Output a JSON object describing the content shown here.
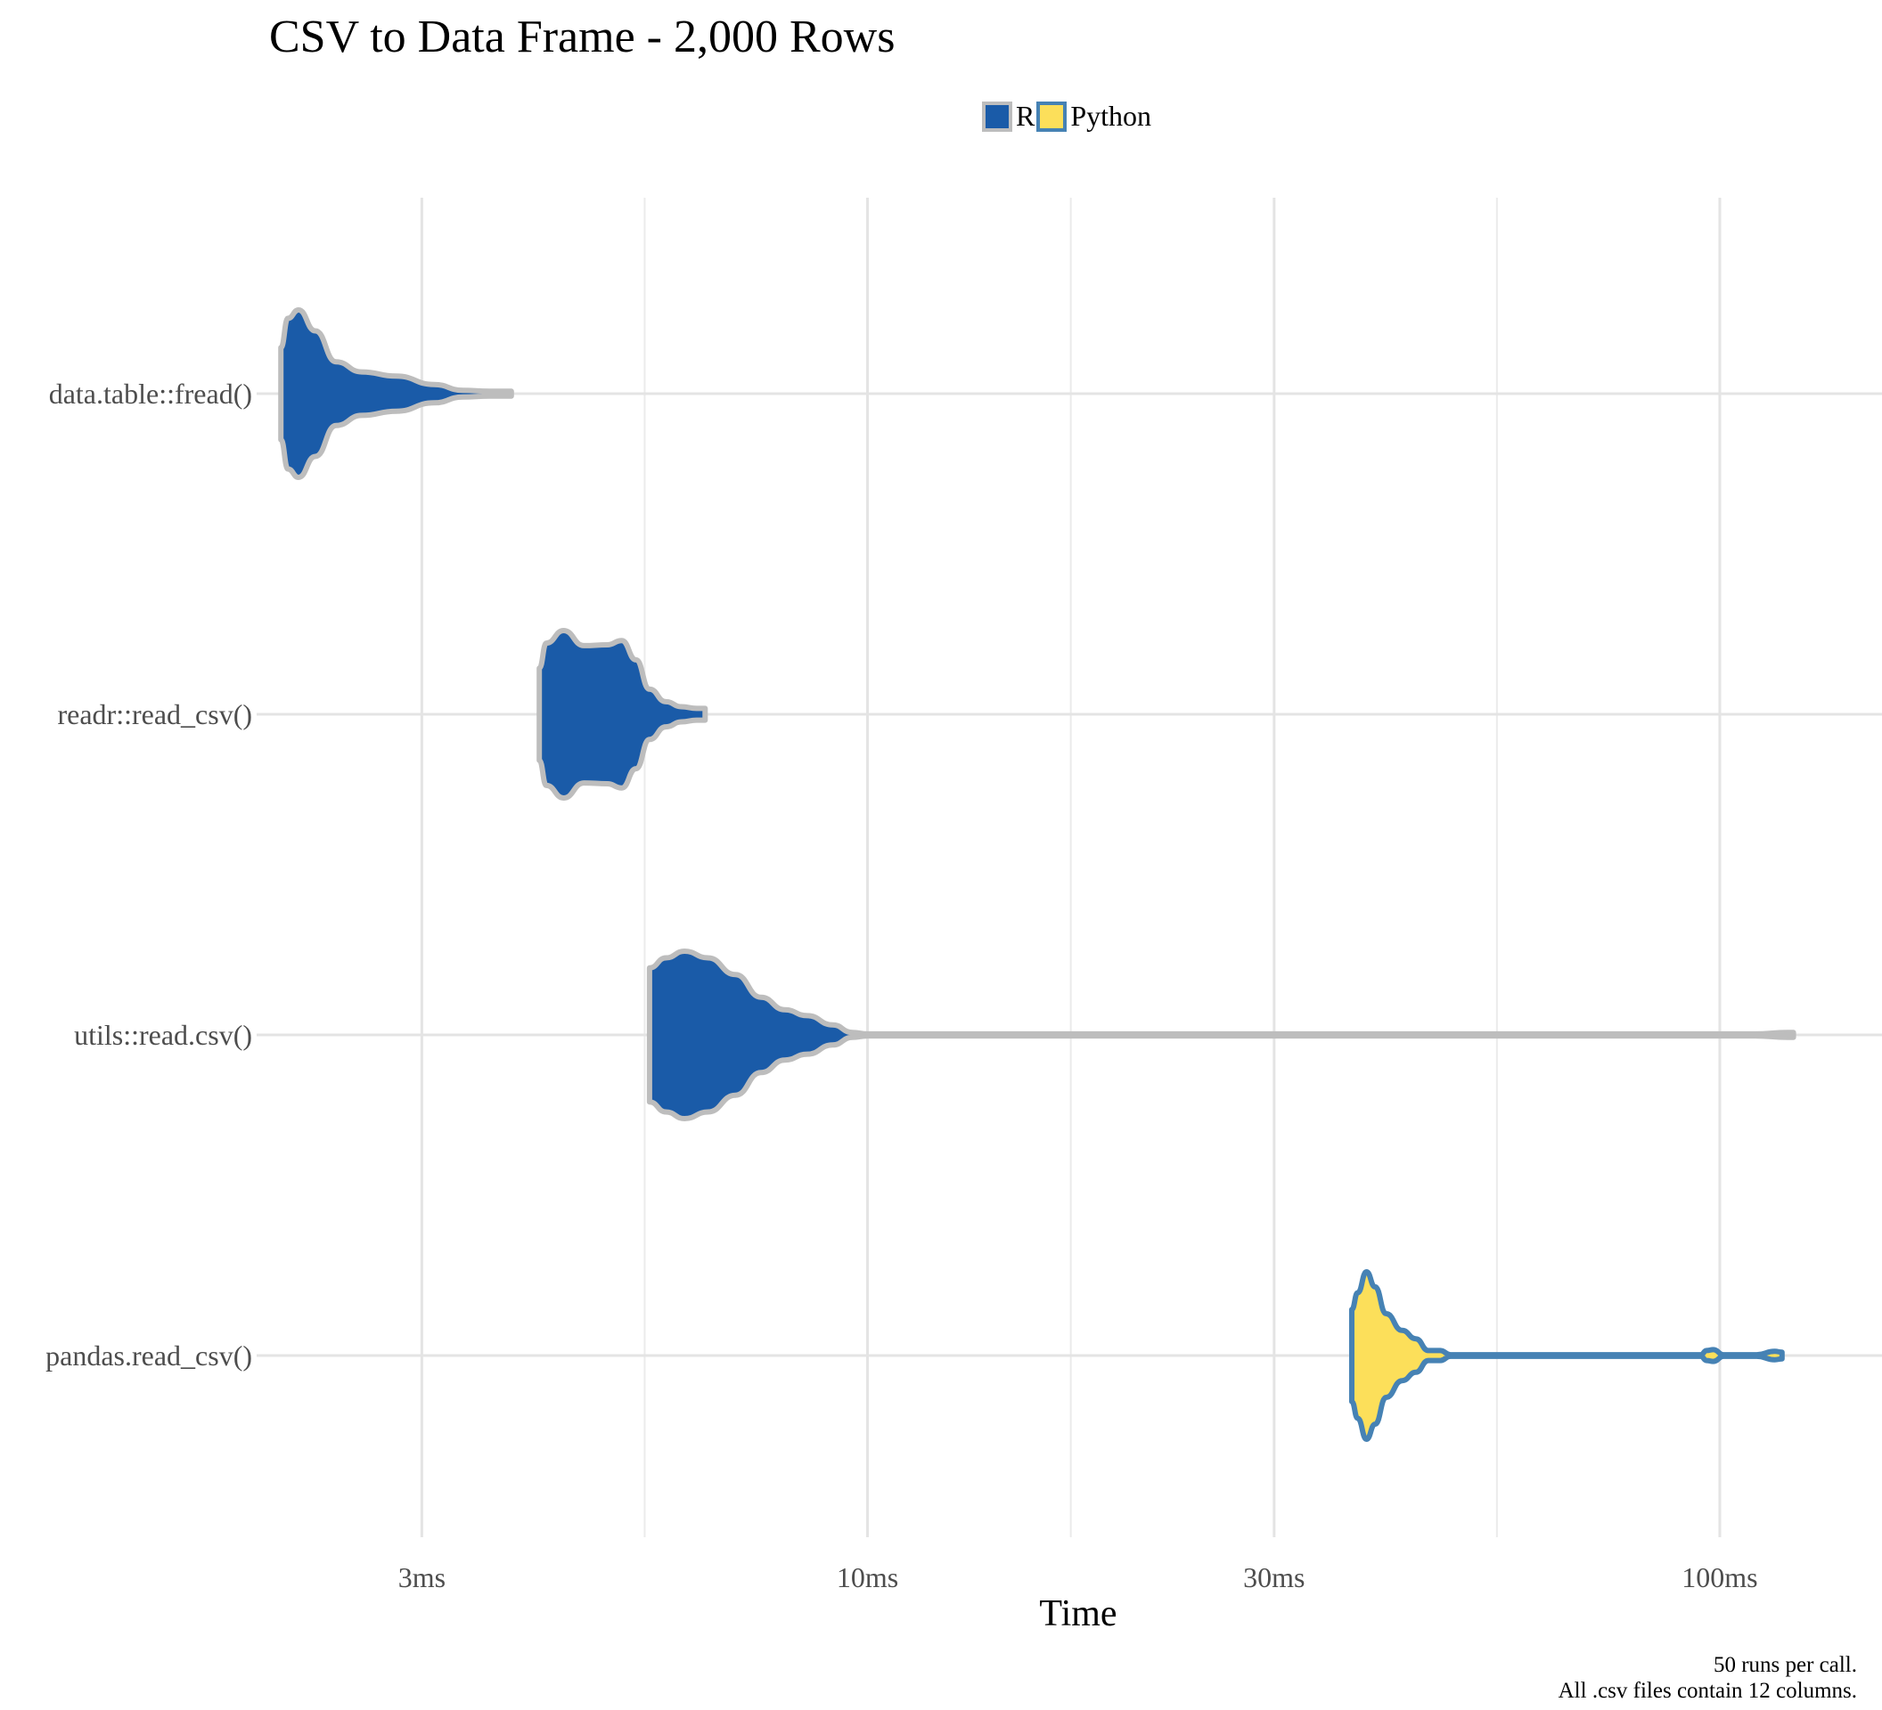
{
  "chart_data": {
    "type": "violin",
    "title": "CSV to Data Frame - 2,000 Rows",
    "xlabel": "Time",
    "ylabel": "",
    "x_scale": "log10",
    "x_unit": "ms",
    "xlim": [
      1.92,
      155
    ],
    "x_ticks": [
      {
        "value": 3,
        "label": "3ms"
      },
      {
        "value": 10,
        "label": "10ms"
      },
      {
        "value": 30,
        "label": "30ms"
      },
      {
        "value": 100,
        "label": "100ms"
      }
    ],
    "x_minor_gridlines": [
      5.477,
      17.32,
      54.77
    ],
    "grid": true,
    "legend": {
      "position": "top",
      "entries": [
        {
          "name": "R",
          "fill": "#1a5ba8",
          "stroke": "#bdbdbd"
        },
        {
          "name": "Python",
          "fill": "#fcdf5a",
          "stroke": "#4682b4"
        }
      ]
    },
    "categories": [
      "data.table::fread()",
      "readr::read_csv()",
      "utils::read.csv()",
      "pandas.read_csv()"
    ],
    "series": [
      {
        "name": "data.table::fread()",
        "language": "R",
        "density_profile": [
          [
            2.05,
            0.55
          ],
          [
            2.09,
            0.9
          ],
          [
            2.15,
            1.0
          ],
          [
            2.25,
            0.75
          ],
          [
            2.38,
            0.38
          ],
          [
            2.55,
            0.26
          ],
          [
            2.8,
            0.21
          ],
          [
            3.1,
            0.11
          ],
          [
            3.35,
            0.04
          ],
          [
            3.6,
            0.03
          ],
          [
            3.82,
            0.03
          ]
        ]
      },
      {
        "name": "readr::read_csv()",
        "language": "R",
        "density_profile": [
          [
            4.12,
            0.55
          ],
          [
            4.2,
            0.85
          ],
          [
            4.4,
            1.0
          ],
          [
            4.65,
            0.82
          ],
          [
            4.95,
            0.83
          ],
          [
            5.15,
            0.88
          ],
          [
            5.35,
            0.65
          ],
          [
            5.55,
            0.3
          ],
          [
            5.8,
            0.15
          ],
          [
            6.05,
            0.09
          ],
          [
            6.3,
            0.07
          ],
          [
            6.45,
            0.07
          ]
        ]
      },
      {
        "name": "utils::read.csv()",
        "language": "R",
        "density_profile": [
          [
            5.55,
            0.8
          ],
          [
            5.8,
            0.92
          ],
          [
            6.1,
            1.0
          ],
          [
            6.5,
            0.92
          ],
          [
            7.0,
            0.72
          ],
          [
            7.5,
            0.45
          ],
          [
            8.0,
            0.3
          ],
          [
            8.5,
            0.23
          ],
          [
            9.1,
            0.12
          ],
          [
            9.6,
            0.03
          ],
          [
            10.0,
            0.012
          ],
          [
            110,
            0.012
          ],
          [
            120,
            0.03
          ],
          [
            122,
            0.03
          ]
        ]
      },
      {
        "name": "pandas.read_csv()",
        "language": "Python",
        "density_profile": [
          [
            37.0,
            0.55
          ],
          [
            37.6,
            0.75
          ],
          [
            38.5,
            1.0
          ],
          [
            39.4,
            0.82
          ],
          [
            40.6,
            0.5
          ],
          [
            42.4,
            0.3
          ],
          [
            44.0,
            0.2
          ],
          [
            45.5,
            0.06
          ],
          [
            47.0,
            0.06
          ],
          [
            48.3,
            0.01
          ],
          [
            95.0,
            0.01
          ],
          [
            96.5,
            0.06
          ],
          [
            98.3,
            0.07
          ],
          [
            101,
            0.01
          ],
          [
            110.5,
            0.01
          ],
          [
            116,
            0.05
          ],
          [
            118.3,
            0.04
          ]
        ]
      }
    ],
    "caption": [
      "50 runs per call.",
      "All .csv files contain 12 columns."
    ]
  }
}
